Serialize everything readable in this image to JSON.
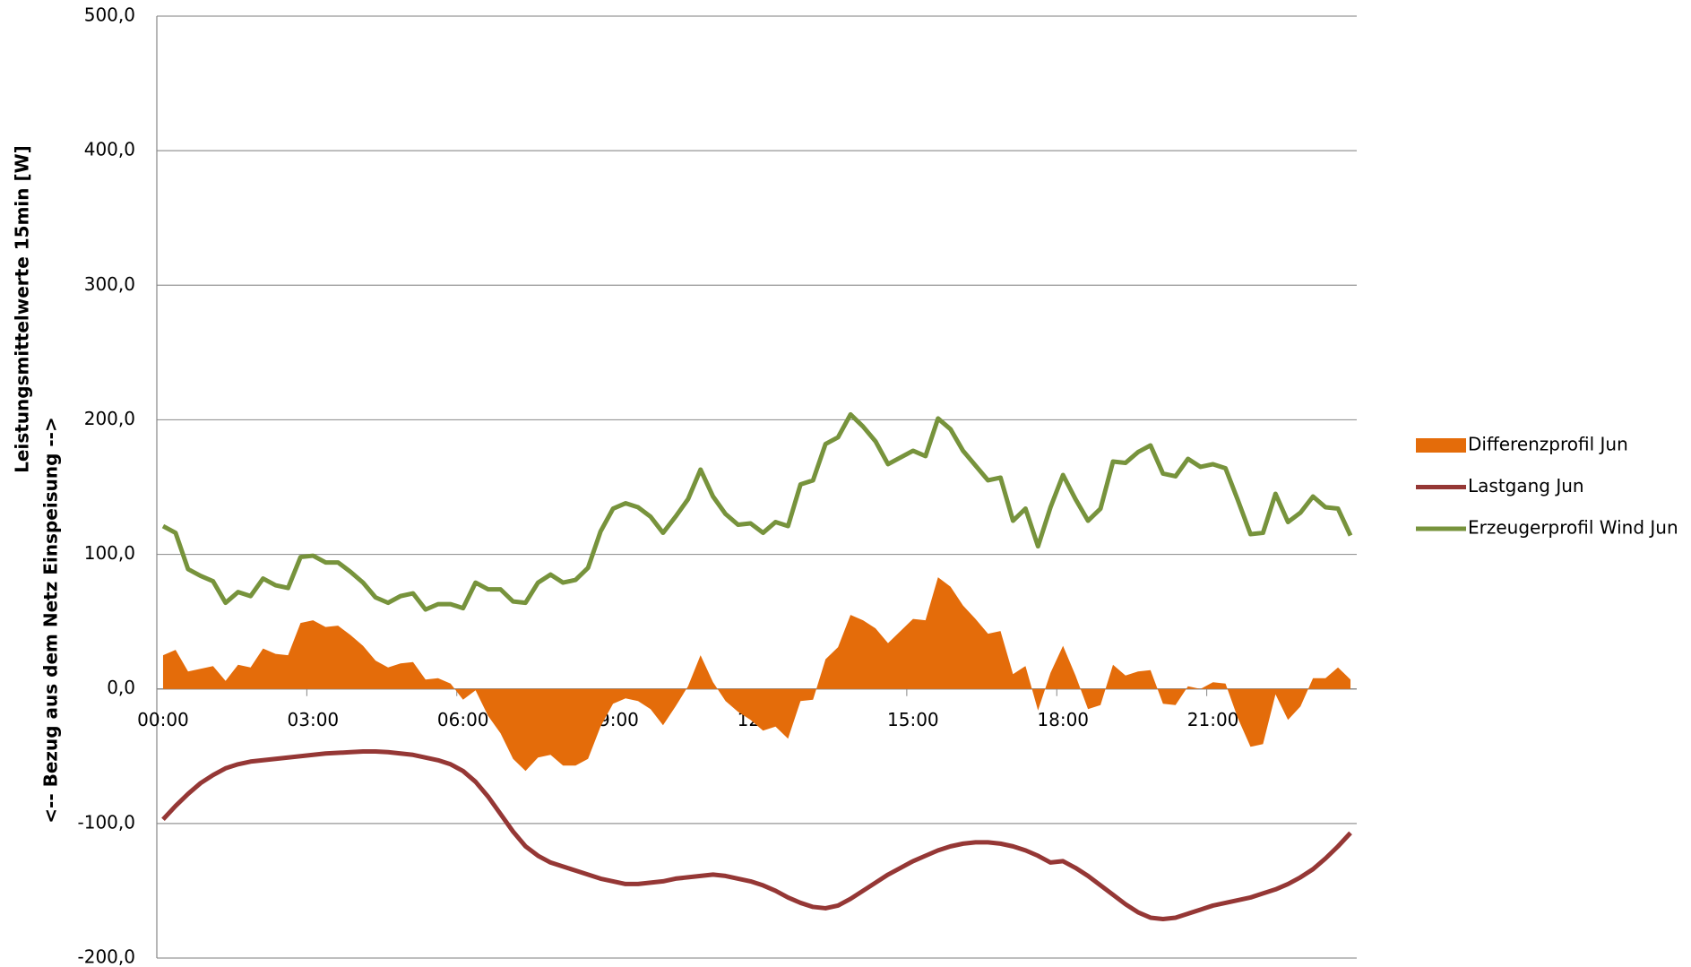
{
  "chart_data": {
    "type": "line",
    "y_label": [
      "Leistungsmittelwerte 15min [W]",
      "<-- Bezug aus dem Netz Einspeisung -->"
    ],
    "categories": [
      "00:00",
      null,
      null,
      null,
      null,
      null,
      null,
      null,
      null,
      null,
      null,
      null,
      "03:00",
      null,
      null,
      null,
      null,
      null,
      null,
      null,
      null,
      null,
      null,
      null,
      "06:00",
      null,
      null,
      null,
      null,
      null,
      null,
      null,
      null,
      null,
      null,
      null,
      "09:00",
      null,
      null,
      null,
      null,
      null,
      null,
      null,
      null,
      null,
      null,
      null,
      "12:00",
      null,
      null,
      null,
      null,
      null,
      null,
      null,
      null,
      null,
      null,
      null,
      "15:00",
      null,
      null,
      null,
      null,
      null,
      null,
      null,
      null,
      null,
      null,
      null,
      "18:00",
      null,
      null,
      null,
      null,
      null,
      null,
      null,
      null,
      null,
      null,
      null,
      "21:00",
      null,
      null,
      null,
      null,
      null,
      null,
      null,
      null,
      null,
      null,
      null
    ],
    "series": [
      {
        "name": "Differenzprofil Jun",
        "kind": "area",
        "color": "#e46c0a",
        "values": [
          25,
          29,
          13,
          15,
          17,
          6,
          18,
          16,
          30,
          26,
          25,
          49,
          51,
          46,
          47,
          40,
          32,
          21,
          16,
          19,
          20,
          7,
          8,
          4,
          -8,
          -1,
          -20,
          -33,
          -52,
          -61,
          -51,
          -49,
          -57,
          -57,
          -52,
          -28,
          -11,
          -7,
          -9,
          -15,
          -27,
          -13,
          2,
          25,
          5,
          -9,
          -17,
          -23,
          -31,
          -28,
          -37,
          -9,
          -8,
          22,
          31,
          55,
          51,
          45,
          34,
          43,
          52,
          51,
          83,
          76,
          62,
          52,
          41,
          43,
          11,
          17,
          -16,
          12,
          32,
          10,
          -15,
          -12,
          18,
          10,
          13,
          14,
          -11,
          -12,
          2,
          0,
          5,
          4,
          -22,
          -43,
          -41,
          -4,
          -23,
          -13,
          8,
          8,
          16,
          7
        ]
      },
      {
        "name": "Lastgang Jun",
        "kind": "line",
        "color": "#953735",
        "values": [
          -97,
          -87,
          -78,
          -70,
          -64,
          -59,
          -56,
          -54,
          -53,
          -52,
          -51,
          -50,
          -49,
          -48,
          -47.5,
          -47,
          -46.5,
          -46.5,
          -47,
          -48,
          -49,
          -51,
          -53,
          -56,
          -61,
          -69,
          -80,
          -93,
          -106,
          -117,
          -124,
          -129,
          -132,
          -135,
          -138,
          -141,
          -143,
          -145,
          -145,
          -144,
          -143,
          -141,
          -140,
          -139,
          -138,
          -139,
          -141,
          -143,
          -146,
          -150,
          -155,
          -159,
          -162,
          -163,
          -161,
          -156,
          -150,
          -144,
          -138,
          -133,
          -128,
          -124,
          -120,
          -117,
          -115,
          -114,
          -114,
          -115,
          -117,
          -120,
          -124,
          -129,
          -128,
          -133,
          -139,
          -146,
          -153,
          -160,
          -166,
          -170,
          -171,
          -170,
          -167,
          -164,
          -161,
          -159,
          -157,
          -155,
          -152,
          -149,
          -145,
          -140,
          -134,
          -126,
          -117,
          -107
        ]
      },
      {
        "name": "Erzeugerprofil Wind Jun",
        "kind": "line",
        "color": "#77933c",
        "values": [
          121,
          116,
          89,
          84,
          80,
          64,
          72,
          69,
          82,
          77,
          75,
          98,
          99,
          94,
          94,
          87,
          79,
          68,
          64,
          69,
          71,
          59,
          63,
          63,
          60,
          79,
          74,
          74,
          65,
          64,
          79,
          85,
          79,
          81,
          90,
          117,
          134,
          138,
          135,
          128,
          116,
          128,
          141,
          163,
          143,
          130,
          122,
          123,
          116,
          124,
          121,
          152,
          155,
          182,
          187,
          204,
          195,
          184,
          167,
          172,
          177,
          173,
          201,
          193,
          177,
          166,
          155,
          157,
          125,
          134,
          106,
          135,
          159,
          141,
          125,
          134,
          169,
          168,
          176,
          181,
          160,
          158,
          171,
          165,
          167,
          164,
          140,
          115,
          116,
          145,
          124,
          131,
          143,
          135,
          134,
          114
        ]
      }
    ],
    "ylim": [
      -200,
      500
    ],
    "yticks": [
      {
        "value": -200,
        "label": "-200,0"
      },
      {
        "value": -100,
        "label": "-100,0"
      },
      {
        "value": 0,
        "label": "0,0"
      },
      {
        "value": 100,
        "label": "100,0"
      },
      {
        "value": 200,
        "label": "200,0"
      },
      {
        "value": 300,
        "label": "300,0"
      },
      {
        "value": 400,
        "label": "400,0"
      },
      {
        "value": 500,
        "label": "500,0"
      }
    ],
    "grid": true,
    "legend": "right"
  }
}
